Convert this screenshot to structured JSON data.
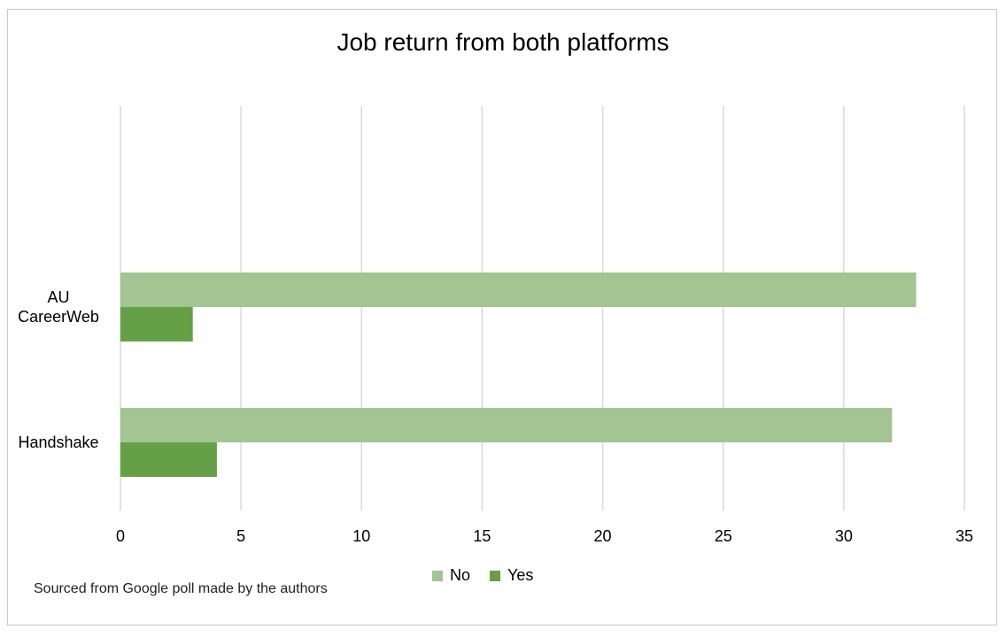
{
  "chart_data": {
    "type": "bar",
    "orientation": "horizontal",
    "title": "Job return from both platforms",
    "categories": [
      "Handshake",
      "AU CareerWeb"
    ],
    "category_labels": [
      [
        "Handshake"
      ],
      [
        "AU",
        "CareerWeb"
      ]
    ],
    "series": [
      {
        "name": "No",
        "values": [
          32,
          33
        ],
        "color": "#a2c593"
      },
      {
        "name": "Yes",
        "values": [
          4,
          3
        ],
        "color": "#65a046"
      }
    ],
    "xlim": [
      0,
      35
    ],
    "xticks": [
      0,
      5,
      10,
      15,
      20,
      25,
      30,
      35
    ],
    "grid": true,
    "legend_position": "bottom",
    "xlabel": "",
    "ylabel": ""
  },
  "source_note": "Sourced from Google poll made by the authors"
}
